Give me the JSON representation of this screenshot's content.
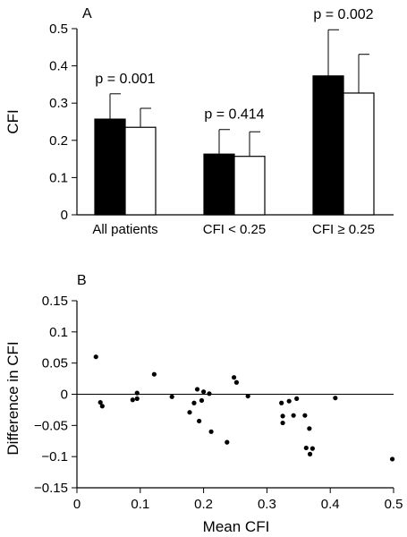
{
  "chart_data": [
    {
      "panel": "A",
      "type": "bar",
      "ylabel": "CFI",
      "ylim": [
        0,
        0.5
      ],
      "yticks": [
        0,
        0.1,
        0.2,
        0.3,
        0.4,
        0.5
      ],
      "ytick_labels": [
        "0",
        "0.1",
        "0.2",
        "0.3",
        "0.4",
        "0.5"
      ],
      "categories": [
        "All patients",
        "CFI < 0.25",
        "CFI ≥ 0.25"
      ],
      "series": [
        {
          "fill": "#000000",
          "values": [
            0.257,
            0.163,
            0.373
          ],
          "error": [
            0.068,
            0.066,
            0.124
          ]
        },
        {
          "fill": "#ffffff",
          "values": [
            0.235,
            0.157,
            0.327
          ],
          "error": [
            0.051,
            0.066,
            0.104
          ]
        }
      ],
      "annotations": [
        "p = 0.001",
        "p = 0.414",
        "p = 0.002"
      ],
      "grid": false
    },
    {
      "panel": "B",
      "type": "scatter",
      "xlabel": "Mean CFI",
      "ylabel": "Difference in CFI",
      "xlim": [
        0,
        0.5
      ],
      "ylim": [
        -0.15,
        0.15
      ],
      "xticks": [
        0,
        0.1,
        0.2,
        0.3,
        0.4,
        0.5
      ],
      "xtick_labels": [
        "0",
        "0.1",
        "0.2",
        "0.3",
        "0.4",
        "0.5"
      ],
      "yticks": [
        0.15,
        0.1,
        0.05,
        0,
        -0.05,
        -0.1,
        -0.15
      ],
      "ytick_labels": [
        "0.15",
        "0.1",
        "0.05",
        "0",
        "−0.05",
        "−0.1",
        "−0.15"
      ],
      "reference_line": 0,
      "grid": false,
      "points": [
        [
          0.03,
          0.06
        ],
        [
          0.037,
          -0.013
        ],
        [
          0.04,
          -0.019
        ],
        [
          0.088,
          -0.009
        ],
        [
          0.095,
          0.002
        ],
        [
          0.095,
          -0.007
        ],
        [
          0.122,
          0.032
        ],
        [
          0.15,
          -0.004
        ],
        [
          0.178,
          -0.029
        ],
        [
          0.185,
          -0.014
        ],
        [
          0.19,
          0.008
        ],
        [
          0.193,
          -0.043
        ],
        [
          0.197,
          -0.01
        ],
        [
          0.2,
          0.004
        ],
        [
          0.209,
          0.001
        ],
        [
          0.212,
          -0.06
        ],
        [
          0.237,
          -0.077
        ],
        [
          0.248,
          0.027
        ],
        [
          0.252,
          0.019
        ],
        [
          0.27,
          -0.003
        ],
        [
          0.323,
          -0.014
        ],
        [
          0.325,
          -0.035
        ],
        [
          0.325,
          -0.046
        ],
        [
          0.335,
          -0.011
        ],
        [
          0.342,
          -0.034
        ],
        [
          0.347,
          -0.007
        ],
        [
          0.36,
          -0.034
        ],
        [
          0.362,
          -0.086
        ],
        [
          0.367,
          -0.055
        ],
        [
          0.368,
          -0.096
        ],
        [
          0.372,
          -0.087
        ],
        [
          0.408,
          -0.006
        ],
        [
          0.498,
          -0.104
        ]
      ]
    }
  ]
}
